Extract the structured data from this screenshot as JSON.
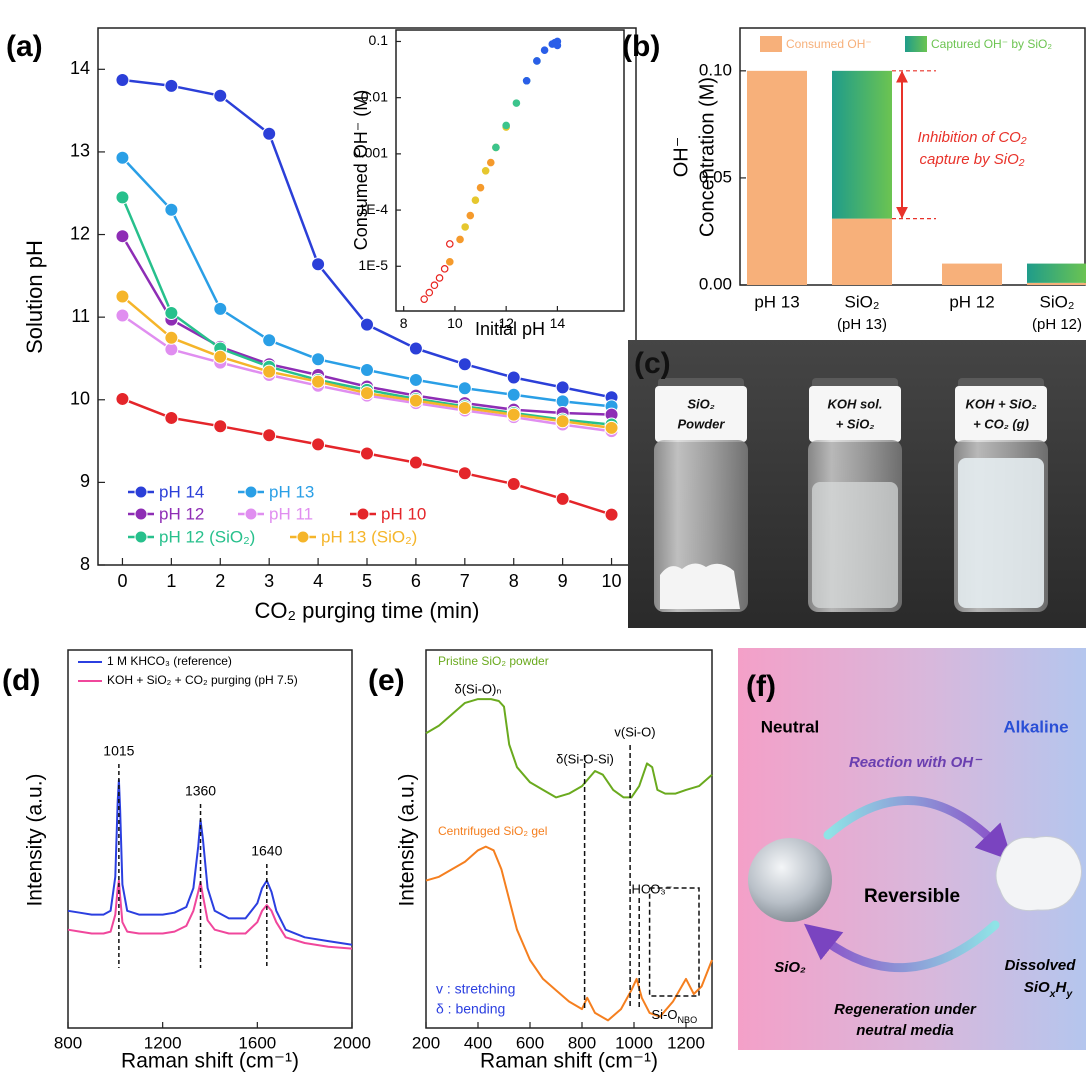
{
  "chart_data": [
    {
      "type": "line",
      "label": "(a)",
      "xlabel": "CO₂ purging time (min)",
      "ylabel": "Solution pH",
      "x": [
        0,
        1,
        2,
        3,
        4,
        5,
        6,
        7,
        8,
        9,
        10
      ],
      "xlim": [
        -0.5,
        10.5
      ],
      "xticks": [
        0,
        1,
        2,
        3,
        4,
        5,
        6,
        7,
        8,
        9,
        10
      ],
      "ylim": [
        8,
        14.5
      ],
      "yticks": [
        8,
        9,
        10,
        11,
        12,
        13,
        14
      ],
      "markers": true,
      "series": [
        {
          "name": "pH 14",
          "color": "#2b3fd8",
          "values": [
            13.87,
            13.8,
            13.68,
            13.22,
            11.64,
            10.91,
            10.62,
            10.43,
            10.27,
            10.15,
            10.03
          ]
        },
        {
          "name": "pH 13",
          "color": "#2a9fe6",
          "values": [
            12.93,
            12.3,
            11.1,
            10.72,
            10.49,
            10.36,
            10.24,
            10.14,
            10.06,
            9.98,
            9.92
          ]
        },
        {
          "name": "pH 12",
          "color": "#8e2db5",
          "values": [
            11.98,
            10.97,
            10.64,
            10.43,
            10.3,
            10.16,
            10.05,
            9.96,
            9.88,
            9.84,
            9.82
          ]
        },
        {
          "name": "pH 11",
          "color": "#e08ef0",
          "values": [
            11.02,
            10.61,
            10.45,
            10.3,
            10.17,
            10.05,
            9.96,
            9.87,
            9.79,
            9.7,
            9.62
          ]
        },
        {
          "name": "pH 10",
          "color": "#e4252a",
          "values": [
            10.01,
            9.78,
            9.68,
            9.57,
            9.46,
            9.35,
            9.24,
            9.11,
            8.98,
            8.8,
            8.61
          ]
        },
        {
          "name": "pH 12 (SiO₂)",
          "color": "#27c08c",
          "values": [
            12.45,
            11.05,
            10.62,
            10.4,
            10.24,
            10.12,
            10.01,
            9.92,
            9.84,
            9.76,
            9.7
          ]
        },
        {
          "name": "pH 13 (SiO₂)",
          "color": "#f5b52a",
          "values": [
            11.25,
            10.75,
            10.52,
            10.34,
            10.22,
            10.08,
            9.99,
            9.9,
            9.82,
            9.74,
            9.66
          ]
        }
      ]
    },
    {
      "type": "scatter",
      "xlabel": "Initial pH",
      "ylabel": "Consumed OH⁻ (M)",
      "ylog": true,
      "xlim": [
        7.7,
        16.6
      ],
      "xticks": [
        8,
        10,
        12,
        14
      ],
      "ylim": [
        1.6e-06,
        0.16
      ],
      "yticks": [
        {
          "value": 1e-05,
          "label": "1E-5"
        },
        {
          "value": 0.0001,
          "label": "1E-4"
        },
        0.001,
        0.01,
        0.1
      ],
      "series": [
        {
          "color": "#e8231f",
          "x": [
            8.8,
            9.0,
            9.2,
            9.4,
            9.6,
            9.8
          ],
          "values": [
            2.6e-06,
            3.4e-06,
            4.6e-06,
            6.2e-06,
            9e-06,
            2.5e-05
          ]
        },
        {
          "color": "#f59a2c",
          "x": [
            9.8,
            10.2,
            10.6,
            11.0,
            11.4
          ],
          "values": [
            1.2e-05,
            3e-05,
            8e-05,
            0.00025,
            0.0007
          ]
        },
        {
          "color": "#e6c72e",
          "x": [
            10.4,
            10.8,
            11.2,
            11.6,
            12.0
          ],
          "values": [
            5e-05,
            0.00015,
            0.0005,
            0.0013,
            0.003
          ]
        },
        {
          "color": "#3cc48c",
          "x": [
            11.6,
            12.0,
            12.4,
            12.8,
            13.2
          ],
          "values": [
            0.0013,
            0.0032,
            0.008,
            0.02,
            0.045
          ]
        },
        {
          "color": "#2a5ee8",
          "x": [
            12.8,
            13.2,
            13.5,
            13.8,
            14.0,
            13.9,
            14.0
          ],
          "values": [
            0.02,
            0.045,
            0.07,
            0.09,
            0.1,
            0.095,
            0.085
          ]
        }
      ]
    },
    {
      "type": "bar",
      "label": "(b)",
      "ylabel": [
        "OH⁻",
        "Concentration (M)"
      ],
      "stacked": true,
      "categories": [
        [
          "pH 13"
        ],
        [
          "SiO₂",
          "(pH 13)"
        ],
        [
          "pH 12"
        ],
        [
          "SiO₂",
          "(pH 12)"
        ]
      ],
      "ylim": [
        0,
        0.12
      ],
      "yticks": [
        {
          "value": 0,
          "label": "0.00"
        },
        {
          "value": 0.05,
          "label": "0.05"
        },
        {
          "value": 0.1,
          "label": "0.10"
        }
      ],
      "series": [
        {
          "name": "Consumed OH⁻",
          "color": "#f7b07a",
          "values": [
            0.1,
            0.031,
            0.01,
            0.001
          ]
        },
        {
          "name": "Captured OH⁻ by SiO₂",
          "color": [
            "#1f9c8a",
            "#6cc451"
          ],
          "values": [
            0,
            0.069,
            0,
            0.009
          ]
        }
      ],
      "annotation": [
        "Inhibition of CO₂",
        "capture by SiO₂"
      ],
      "annotation_color": "#e8322a"
    },
    {
      "type": "line",
      "label": "(d)",
      "xlabel": "Raman shift (cm⁻¹)",
      "ylabel": "Intensity (a.u.)",
      "xlim": [
        800,
        2000
      ],
      "xticks": [
        800,
        1200,
        1600,
        2000
      ],
      "ylim": [
        0,
        100
      ],
      "peaks": [
        1015,
        1360,
        1640
      ],
      "series": [
        {
          "name": "1 M KHCO₃ (reference)",
          "color": "#2b3fe0",
          "x": [
            800,
            850,
            900,
            950,
            980,
            1000,
            1010,
            1015,
            1020,
            1030,
            1050,
            1100,
            1150,
            1200,
            1250,
            1300,
            1330,
            1350,
            1360,
            1370,
            1390,
            1420,
            1480,
            1550,
            1600,
            1620,
            1640,
            1660,
            1680,
            1720,
            1800,
            1900,
            2000
          ],
          "values": [
            31,
            30.5,
            30,
            30,
            31,
            40,
            60,
            65.6,
            58,
            38,
            31,
            30,
            30,
            30,
            30.5,
            32,
            37,
            48,
            55,
            50,
            37,
            31,
            29,
            29,
            33,
            37,
            39,
            36,
            31,
            26,
            24,
            23,
            22
          ]
        },
        {
          "name": "KOH + SiO₂ + CO₂ purging (pH 7.5)",
          "color": "#f0479c",
          "x": [
            800,
            850,
            900,
            950,
            980,
            1000,
            1010,
            1015,
            1020,
            1030,
            1050,
            1100,
            1150,
            1200,
            1250,
            1300,
            1330,
            1350,
            1360,
            1370,
            1390,
            1420,
            1480,
            1550,
            1600,
            1620,
            1640,
            1660,
            1680,
            1720,
            1800,
            1900,
            2000
          ],
          "values": [
            26,
            25.5,
            25,
            25,
            25.5,
            30,
            37,
            39,
            35,
            28,
            25.5,
            25,
            25,
            25,
            25.5,
            27,
            31,
            36,
            38.6,
            35,
            28.5,
            26,
            25,
            25,
            28,
            31,
            32.5,
            31,
            28,
            24,
            22.5,
            21.5,
            21
          ]
        }
      ]
    },
    {
      "type": "line",
      "label": "(e)",
      "xlabel": "Raman shift (cm⁻¹)",
      "ylabel": "Intensity (a.u.)",
      "xlim": [
        200,
        1300
      ],
      "xticks": [
        200,
        400,
        600,
        800,
        1000,
        1200
      ],
      "ylim": [
        0,
        100
      ],
      "series": [
        {
          "name": "Pristine SiO₂ powder",
          "color": "#6aaa1e",
          "x": [
            200,
            250,
            300,
            350,
            400,
            450,
            480,
            500,
            520,
            550,
            600,
            650,
            700,
            750,
            800,
            850,
            880,
            920,
            960,
            990,
            1020,
            1050,
            1070,
            1090,
            1120,
            1160,
            1200,
            1250,
            1300
          ],
          "values": [
            78,
            80,
            83,
            86,
            87,
            87,
            86.5,
            85,
            75,
            69,
            65,
            63,
            61,
            62,
            64,
            68,
            67,
            63,
            61,
            61,
            64,
            70,
            69,
            63,
            62,
            62,
            63,
            64,
            67
          ]
        },
        {
          "name": "Centrifuged SiO₂ gel",
          "color": "#f57f1f",
          "x": [
            200,
            250,
            300,
            350,
            400,
            430,
            460,
            490,
            520,
            550,
            600,
            650,
            700,
            750,
            800,
            820,
            850,
            900,
            950,
            990,
            1010,
            1030,
            1060,
            1100,
            1150,
            1200,
            1230,
            1260,
            1300
          ],
          "values": [
            39,
            40,
            42,
            44,
            47,
            48,
            47,
            42,
            34,
            26,
            18,
            13,
            10,
            7,
            5,
            8,
            4,
            2,
            5,
            10,
            13,
            8,
            4,
            3,
            7,
            13,
            9,
            11,
            18
          ]
        }
      ],
      "marker_lines": [
        810,
        985,
        1020
      ],
      "annotations": [
        "δ(Si-O)ₙ",
        "δ(Si-O-Si)",
        "v(Si-O)",
        "HCO₃⁻"
      ],
      "nbo": [
        "Si-O",
        "NBO"
      ],
      "notes": [
        "v : stretching",
        "δ : bending"
      ]
    }
  ],
  "photo": {
    "label": "(c)",
    "vials": [
      [
        "SiO₂",
        "Powder"
      ],
      [
        "KOH sol.",
        "+ SiO₂"
      ],
      [
        "KOH + SiO₂",
        "+ CO₂ (g)"
      ]
    ]
  },
  "diagram": {
    "label": "(f)",
    "left": "Neutral",
    "right": "Alkaline",
    "top_arrow": "Reaction with OH⁻",
    "center": "Reversible",
    "left_item": "SiO₂",
    "right_item": "Dissolved",
    "formula": [
      "SiO",
      "x",
      "H",
      "y"
    ],
    "bottom_arrow": [
      "Regeneration under",
      "neutral media"
    ]
  }
}
